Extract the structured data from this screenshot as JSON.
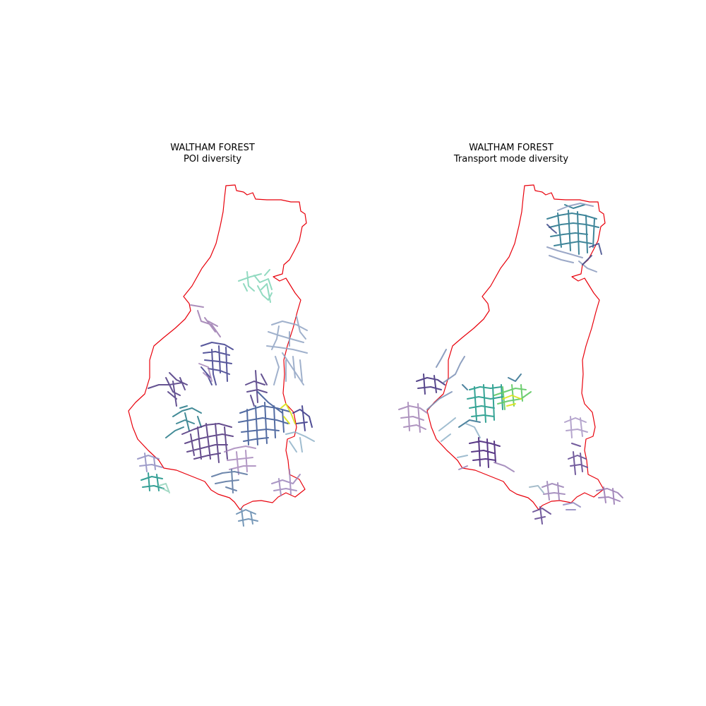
{
  "panels": [
    {
      "title": "WALTHAM FOREST",
      "subtitle": "POI diversity"
    },
    {
      "title": "WALTHAM FOREST",
      "subtitle": "Transport mode diversity"
    }
  ],
  "colors": {
    "boundary": "#e8000b",
    "colormap": "viridis"
  }
}
